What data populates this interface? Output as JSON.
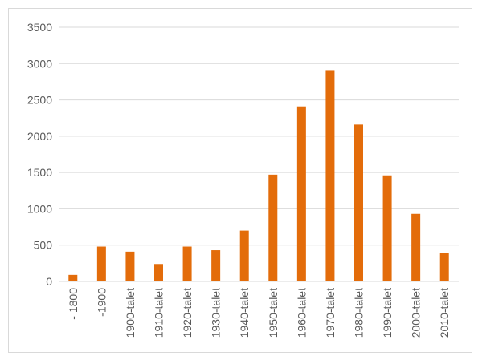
{
  "chart_data": {
    "type": "bar",
    "categories": [
      "- 1800",
      "-1900",
      "1900-talet",
      "1910-talet",
      "1920-talet",
      "1930-talet",
      "1940-talet",
      "1950-talet",
      "1960-talet",
      "1970-talet",
      "1980-talet",
      "1990-talet",
      "2000-talet",
      "2010-talet"
    ],
    "values": [
      90,
      480,
      410,
      240,
      480,
      430,
      700,
      1470,
      2410,
      2910,
      2160,
      1460,
      930,
      390
    ],
    "ylim": [
      0,
      3500
    ],
    "yticks": [
      0,
      500,
      1000,
      1500,
      2000,
      2500,
      3000,
      3500
    ],
    "title": "",
    "xlabel": "",
    "ylabel": "",
    "grid": true,
    "legend": "none",
    "bar_color": "#e36c0a",
    "grid_color": "#d9d9d9",
    "text_color": "#595959"
  }
}
